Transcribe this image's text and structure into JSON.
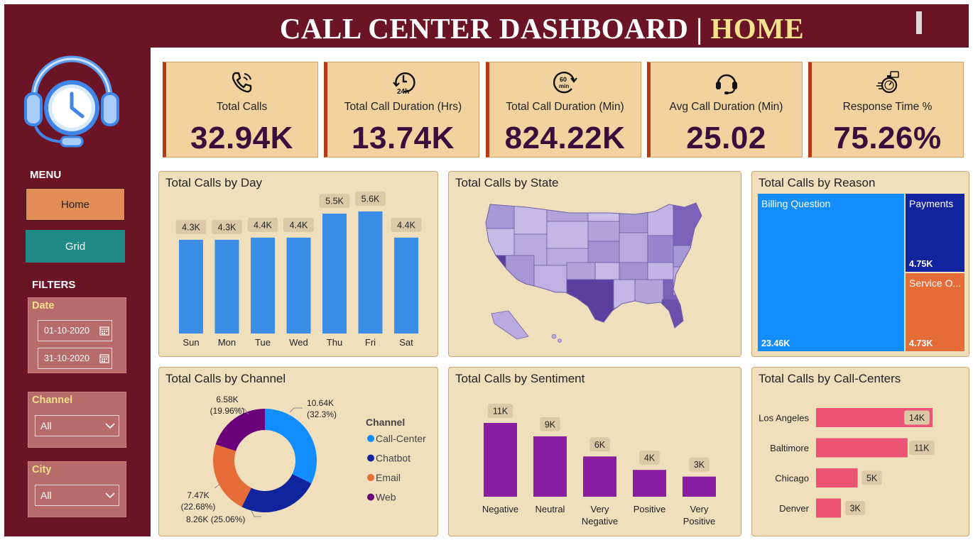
{
  "header": {
    "title_main": "CALL CENTER DASHBOARD",
    "title_sep": " | ",
    "title_page": "HOME"
  },
  "sidebar": {
    "menu_heading": "MENU",
    "home_button": "Home",
    "grid_button": "Grid",
    "filters_heading": "FILTERS",
    "date_label": "Date",
    "date_start": "01-10-2020",
    "date_end": "31-10-2020",
    "channel_label": "Channel",
    "channel_value": "All",
    "city_label": "City",
    "city_value": "All"
  },
  "kpis": [
    {
      "label": "Total Calls",
      "value": "32.94K",
      "icon": "phone-icon"
    },
    {
      "label": "Total Call Duration (Hrs)",
      "value": "13.74K",
      "icon": "24h-clock-icon"
    },
    {
      "label": "Total Call Duration (Min)",
      "value": "824.22K",
      "icon": "60-min-icon"
    },
    {
      "label": "Avg Call Duration (Min)",
      "value": "25.02",
      "icon": "headset-icon"
    },
    {
      "label": "Response Time %",
      "value": "75.26%",
      "icon": "stopwatch-icon"
    }
  ],
  "colors": {
    "header": "#6b1426",
    "accent": "#f3e28c",
    "panel": "#f0dfbd",
    "kpi": "#f2d29e",
    "bar_blue": "#3a8ee6",
    "purple": "#8a1ea0",
    "pink": "#ec5476"
  },
  "chart_data": [
    {
      "type": "bar",
      "title": "Total Calls by Day",
      "categories": [
        "Sun",
        "Mon",
        "Tue",
        "Wed",
        "Thu",
        "Fri",
        "Sat"
      ],
      "values": [
        4300,
        4300,
        4400,
        4400,
        5500,
        5600,
        4400
      ],
      "labels": [
        "4.3K",
        "4.3K",
        "4.4K",
        "4.4K",
        "5.5K",
        "5.6K",
        "4.4K"
      ],
      "ylim": [
        0,
        5600
      ]
    },
    {
      "type": "map",
      "title": "Total Calls by State"
    },
    {
      "type": "treemap",
      "title": "Total Calls by Reason",
      "items": [
        {
          "name": "Billing Question",
          "value_label": "23.46K",
          "value": 23460
        },
        {
          "name": "Payments",
          "value_label": "4.75K",
          "value": 4750
        },
        {
          "name": "Service O...",
          "value_label": "4.73K",
          "value": 4730
        }
      ]
    },
    {
      "type": "pie",
      "title": "Total Calls by Channel",
      "legend_title": "Channel",
      "slices": [
        {
          "name": "Call-Center",
          "value": 10.64,
          "value_label": "10.64K",
          "pct": "(32.3%)",
          "color": "#118dff"
        },
        {
          "name": "Chatbot",
          "value": 8.26,
          "value_label": "8.26K",
          "pct": "(25.06%)",
          "color": "#12239e"
        },
        {
          "name": "Email",
          "value": 7.47,
          "value_label": "7.47K",
          "pct": "(22.68%)",
          "color": "#e66c37"
        },
        {
          "name": "Web",
          "value": 6.58,
          "value_label": "6.58K",
          "pct": "(19.96%)",
          "color": "#6b007b"
        }
      ]
    },
    {
      "type": "bar",
      "title": "Total Calls by Sentiment",
      "categories": [
        "Negative",
        "Neutral",
        "Very Negative",
        "Positive",
        "Very Positive"
      ],
      "values": [
        11000,
        9000,
        6000,
        4000,
        3000
      ],
      "labels": [
        "11K",
        "9K",
        "6K",
        "4K",
        "3K"
      ],
      "ylim": [
        0,
        11000
      ]
    },
    {
      "type": "bar",
      "orientation": "horizontal",
      "title": "Total Calls by Call-Centers",
      "categories": [
        "Los Angeles",
        "Baltimore",
        "Chicago",
        "Denver"
      ],
      "values": [
        14000,
        11000,
        5000,
        3000
      ],
      "labels": [
        "14K",
        "11K",
        "5K",
        "3K"
      ],
      "xlim": [
        0,
        14000
      ]
    }
  ]
}
